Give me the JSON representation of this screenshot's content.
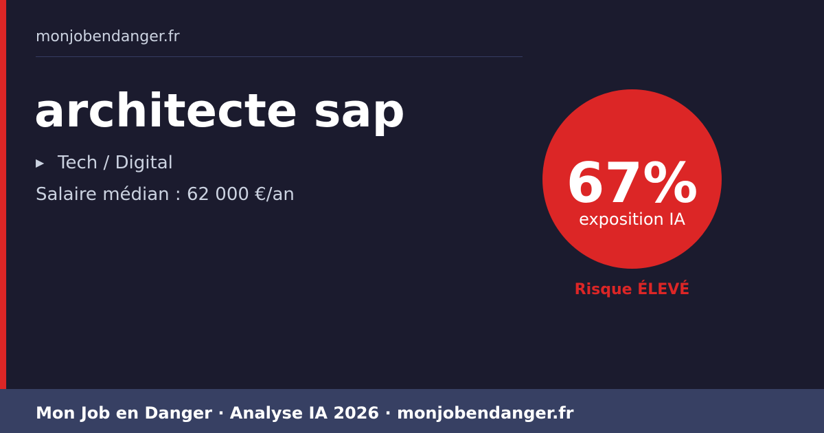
{
  "site": "monjobendanger.fr",
  "job": {
    "title": "architecte sap",
    "category_icon": "triangle-right-icon",
    "category": "Tech / Digital",
    "salary": "Salaire médian : 62 000 €/an"
  },
  "score": {
    "value": "67%",
    "label": "exposition IA",
    "risk": "Risque ÉLEVÉ",
    "color": "#dc2626"
  },
  "footer": {
    "text": "Mon Job en Danger · Analyse IA 2026 · monjobendanger.fr"
  },
  "colors": {
    "background": "#1b1b2e",
    "accent": "#dc2626",
    "footer": "#374063"
  }
}
